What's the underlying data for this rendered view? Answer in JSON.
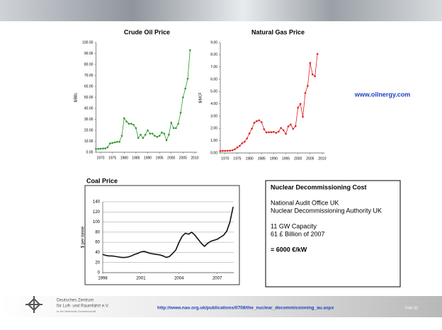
{
  "chart_data": [
    {
      "type": "line",
      "title": "Crude Oil Price",
      "y_label": "$/BBL",
      "color": "#2e9a2e",
      "markers": true,
      "grid": false,
      "x": [
        1968,
        1969,
        1970,
        1971,
        1972,
        1973,
        1974,
        1975,
        1976,
        1977,
        1978,
        1979,
        1980,
        1981,
        1982,
        1983,
        1984,
        1985,
        1986,
        1987,
        1988,
        1989,
        1990,
        1991,
        1992,
        1993,
        1994,
        1995,
        1996,
        1997,
        1998,
        1999,
        2000,
        2001,
        2002,
        2003,
        2004,
        2005,
        2006,
        2007,
        2008
      ],
      "values": [
        3,
        3.1,
        3.2,
        3.4,
        3.5,
        4.5,
        8,
        8.5,
        9,
        9.5,
        9.5,
        15,
        31,
        28,
        26,
        26,
        25,
        22,
        13,
        16,
        13,
        16,
        20,
        17,
        17,
        15,
        14,
        15,
        18,
        17,
        11,
        16,
        27,
        22,
        22,
        26,
        36,
        50,
        58,
        67,
        93
      ],
      "xlim": [
        1968,
        2011
      ],
      "xticks": [
        1970,
        1975,
        1980,
        1985,
        1990,
        1995,
        2000,
        2005,
        2010
      ],
      "ylim": [
        0,
        100
      ],
      "yticks": [
        {
          "value": 0,
          "label": "0.00"
        },
        {
          "value": 10,
          "label": "10.00"
        },
        {
          "value": 20,
          "label": "20.00"
        },
        {
          "value": 30,
          "label": "30.00"
        },
        {
          "value": 40,
          "label": "40.00"
        },
        {
          "value": 50,
          "label": "50.00"
        },
        {
          "value": 60,
          "label": "60.00"
        },
        {
          "value": 70,
          "label": "70.00"
        },
        {
          "value": 80,
          "label": "80.00"
        },
        {
          "value": 90,
          "label": "90.00"
        },
        {
          "value": 100,
          "label": "100.00"
        }
      ]
    },
    {
      "type": "line",
      "title": "Natural Gas Price",
      "y_label": "$/MCF",
      "color": "#e02020",
      "markers": true,
      "grid": false,
      "x": [
        1968,
        1969,
        1970,
        1971,
        1972,
        1973,
        1974,
        1975,
        1976,
        1977,
        1978,
        1979,
        1980,
        1981,
        1982,
        1983,
        1984,
        1985,
        1986,
        1987,
        1988,
        1989,
        1990,
        1991,
        1992,
        1993,
        1994,
        1995,
        1996,
        1997,
        1998,
        1999,
        2000,
        2001,
        2002,
        2003,
        2004,
        2005,
        2006,
        2007,
        2008
      ],
      "values": [
        0.16,
        0.17,
        0.17,
        0.18,
        0.19,
        0.22,
        0.3,
        0.45,
        0.58,
        0.79,
        0.91,
        1.18,
        1.59,
        1.98,
        2.46,
        2.59,
        2.66,
        2.51,
        1.94,
        1.67,
        1.69,
        1.69,
        1.71,
        1.64,
        1.74,
        2.04,
        1.85,
        1.55,
        2.17,
        2.32,
        1.96,
        2.19,
        3.69,
        4.0,
        2.95,
        4.88,
        5.46,
        7.33,
        6.4,
        6.25,
        8.07
      ],
      "xlim": [
        1968,
        2011
      ],
      "xticks": [
        1970,
        1975,
        1980,
        1985,
        1990,
        1995,
        2000,
        2005,
        2010
      ],
      "ylim": [
        0,
        9
      ],
      "yticks": [
        {
          "value": 0,
          "label": "0.00"
        },
        {
          "value": 1,
          "label": "1.00"
        },
        {
          "value": 2,
          "label": "2.00"
        },
        {
          "value": 3,
          "label": "3.00"
        },
        {
          "value": 4,
          "label": "4.00"
        },
        {
          "value": 5,
          "label": "5.00"
        },
        {
          "value": 6,
          "label": "6.00"
        },
        {
          "value": 7,
          "label": "7.00"
        },
        {
          "value": 8,
          "label": "8.00"
        },
        {
          "value": 9,
          "label": "9.00"
        }
      ]
    },
    {
      "type": "line",
      "title": "Coal Price",
      "y_label": "$ per tonne",
      "color": "#111111",
      "markers": false,
      "grid": true,
      "x": [
        1998,
        1998.25,
        1998.5,
        1998.75,
        1999,
        1999.25,
        1999.5,
        1999.75,
        2000,
        2000.25,
        2000.5,
        2000.75,
        2001,
        2001.25,
        2001.5,
        2001.75,
        2002,
        2002.25,
        2002.5,
        2002.75,
        2003,
        2003.25,
        2003.5,
        2003.75,
        2004,
        2004.25,
        2004.5,
        2004.75,
        2005,
        2005.25,
        2005.5,
        2005.75,
        2006,
        2006.25,
        2006.5,
        2006.75,
        2007,
        2007.25,
        2007.5,
        2007.75,
        2008,
        2008.25
      ],
      "values": [
        36,
        34,
        33,
        33,
        32,
        31,
        30,
        30,
        31,
        33,
        36,
        38,
        41,
        42,
        40,
        38,
        37,
        36,
        35,
        33,
        30,
        32,
        38,
        45,
        60,
        72,
        78,
        76,
        80,
        74,
        66,
        58,
        52,
        58,
        62,
        64,
        66,
        70,
        74,
        82,
        100,
        130
      ],
      "xlim": [
        1998,
        2008.3
      ],
      "xticks": [
        1998,
        2001,
        2004,
        2007
      ],
      "ylim": [
        0,
        140
      ],
      "yticks": [
        0,
        20,
        40,
        60,
        80,
        100,
        120,
        140
      ]
    }
  ],
  "website": "www.oilnergy.com",
  "nuclear": {
    "title": "Nuclear Decommissioning Cost",
    "lines": [
      "National Audit Office UK",
      "Nuclear Decommissioning Authority UK",
      "11 GW Capacity",
      "61 £ Billion of 2007"
    ],
    "result": "= 6000 €/kW"
  },
  "footer": {
    "org": [
      "Deutsches Zentrum",
      "für Luft- und Raumfahrt e.V.",
      "in der Helmholtz-Gemeinschaft"
    ],
    "url": "http://www.nao.org.uk/publications/0708/the_nuclear_decommissioning_au.aspx",
    "slide": "Folie 20"
  }
}
